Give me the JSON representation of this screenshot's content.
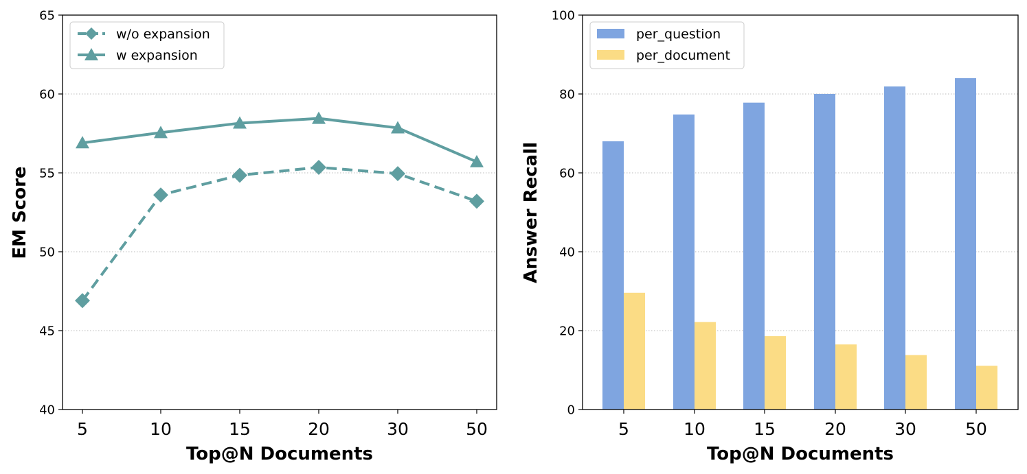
{
  "colors": {
    "line": "#5f9ea0",
    "per_question": "#7fa5e0",
    "per_document": "#fbdc85",
    "grid": "#bbbbbb"
  },
  "chart_data": [
    {
      "type": "line",
      "categories": [
        "5",
        "10",
        "15",
        "20",
        "30",
        "50"
      ],
      "xlabel": "Top@N Documents",
      "ylabel": "EM Score",
      "ylim": [
        40,
        65
      ],
      "yticks": [
        40,
        45,
        50,
        55,
        60,
        65
      ],
      "grid": "horizontal dotted",
      "legend_position": "upper-left",
      "series": [
        {
          "name": "w/o expansion",
          "marker": "diamond",
          "linestyle": "dashed",
          "values": [
            46.9,
            53.6,
            54.85,
            55.35,
            54.95,
            53.2
          ]
        },
        {
          "name": "w expansion",
          "marker": "triangle",
          "linestyle": "solid",
          "values": [
            56.9,
            57.55,
            58.15,
            58.45,
            57.85,
            55.7
          ]
        }
      ]
    },
    {
      "type": "bar",
      "categories": [
        "5",
        "10",
        "15",
        "20",
        "30",
        "50"
      ],
      "xlabel": "Top@N Documents",
      "ylabel": "Answer Recall",
      "ylim": [
        0,
        100
      ],
      "yticks": [
        0,
        20,
        40,
        60,
        80,
        100
      ],
      "grid": "horizontal dotted",
      "legend_position": "upper-left",
      "series": [
        {
          "name": "per_question",
          "values": [
            68,
            74.8,
            77.8,
            80,
            81.9,
            84
          ]
        },
        {
          "name": "per_document",
          "values": [
            29.6,
            22.2,
            18.6,
            16.5,
            13.8,
            11.1
          ]
        }
      ]
    }
  ]
}
